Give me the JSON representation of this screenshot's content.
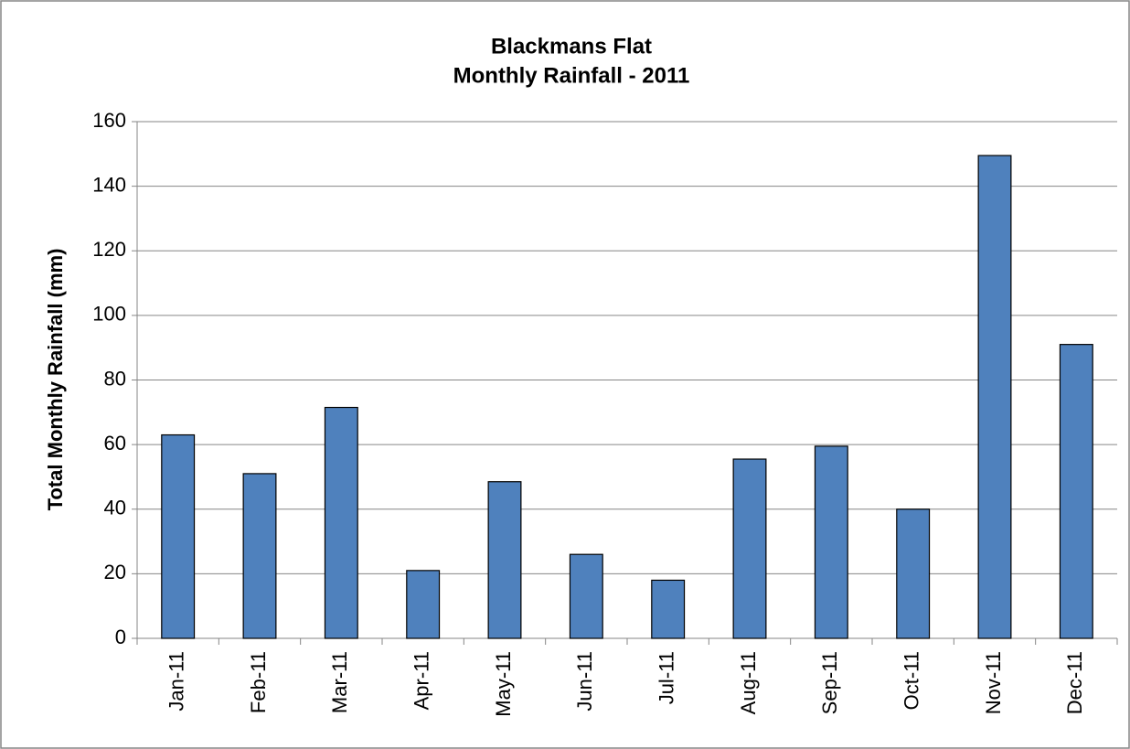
{
  "chart_data": {
    "type": "bar",
    "title": [
      "Blackmans Flat",
      "Monthly Rainfall - 2011"
    ],
    "y_label": "Total Monthly Rainfall (mm)",
    "categories": [
      "Jan-11",
      "Feb-11",
      "Mar-11",
      "Apr-11",
      "May-11",
      "Jun-11",
      "Jul-11",
      "Aug-11",
      "Sep-11",
      "Oct-11",
      "Nov-11",
      "Dec-11"
    ],
    "values": [
      63,
      51,
      71.5,
      21,
      48.5,
      26,
      18,
      55.5,
      59.5,
      40,
      149.5,
      91
    ],
    "color": "#4f81bd",
    "ylim": [
      0,
      160
    ],
    "yticks": [
      0,
      20,
      40,
      60,
      80,
      100,
      120,
      140,
      160
    ],
    "grid": true
  }
}
